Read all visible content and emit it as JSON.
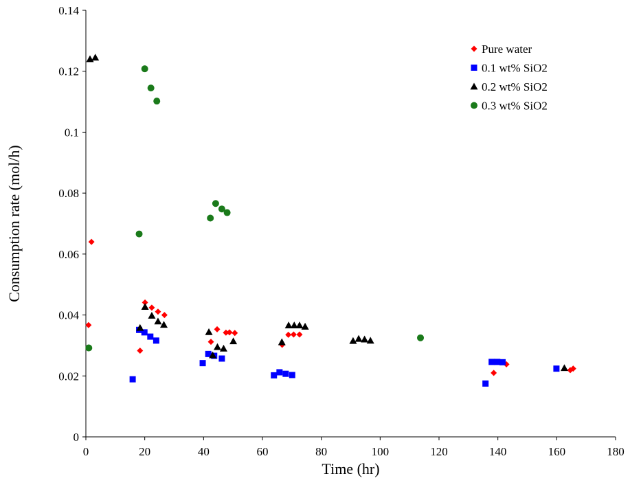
{
  "chart_data": {
    "type": "scatter",
    "xlabel": "Time (hr)",
    "ylabel": "Consumption rate (mol/h)",
    "xlim": [
      0,
      180
    ],
    "ylim": [
      0,
      0.14
    ],
    "xticks": [
      "0",
      "20",
      "40",
      "60",
      "80",
      "100",
      "120",
      "140",
      "160",
      "180"
    ],
    "yticks": [
      "0",
      "0.02",
      "0.04",
      "0.06",
      "0.08",
      "0.1",
      "0.12",
      "0.14"
    ],
    "grid": false,
    "legend_position": "top-right",
    "series": [
      {
        "name": "Pure water",
        "marker": "diamond",
        "color": "#ff0000",
        "points": [
          [
            0.9,
            0.0367
          ],
          [
            1.9,
            0.064
          ],
          [
            18.4,
            0.0283
          ],
          [
            20.1,
            0.0441
          ],
          [
            22.4,
            0.0424
          ],
          [
            24.5,
            0.0411
          ],
          [
            26.7,
            0.04
          ],
          [
            42.5,
            0.0312
          ],
          [
            44.6,
            0.0353
          ],
          [
            47.6,
            0.0342
          ],
          [
            48.8,
            0.0343
          ],
          [
            50.6,
            0.0341
          ],
          [
            66.7,
            0.0302
          ],
          [
            68.8,
            0.0335
          ],
          [
            70.6,
            0.0336
          ],
          [
            72.6,
            0.0336
          ],
          [
            138.6,
            0.021
          ],
          [
            142.9,
            0.0238
          ],
          [
            164.6,
            0.0219
          ],
          [
            165.6,
            0.0224
          ]
        ]
      },
      {
        "name": "0.1 wt% SiO2",
        "marker": "square",
        "color": "#0000ff",
        "points": [
          [
            15.9,
            0.0189
          ],
          [
            18.1,
            0.0351
          ],
          [
            19.9,
            0.0343
          ],
          [
            21.9,
            0.0329
          ],
          [
            23.9,
            0.0316
          ],
          [
            39.7,
            0.0242
          ],
          [
            41.6,
            0.0272
          ],
          [
            43.6,
            0.0266
          ],
          [
            46.2,
            0.0257
          ],
          [
            63.9,
            0.0202
          ],
          [
            65.8,
            0.0212
          ],
          [
            67.9,
            0.0207
          ],
          [
            70.1,
            0.0203
          ],
          [
            135.8,
            0.0175
          ],
          [
            137.9,
            0.0246
          ],
          [
            139.8,
            0.0246
          ],
          [
            141.6,
            0.0245
          ],
          [
            159.9,
            0.0224
          ]
        ]
      },
      {
        "name": "0.2 wt% SiO2",
        "marker": "triangle",
        "color": "#000000",
        "points": [
          [
            1.4,
            0.124
          ],
          [
            3.2,
            0.1245
          ],
          [
            18.4,
            0.0358
          ],
          [
            20.1,
            0.0427
          ],
          [
            22.4,
            0.0398
          ],
          [
            24.5,
            0.0379
          ],
          [
            26.5,
            0.0368
          ],
          [
            41.8,
            0.0344
          ],
          [
            43.1,
            0.0268
          ],
          [
            44.7,
            0.0295
          ],
          [
            46.8,
            0.029
          ],
          [
            50.1,
            0.0314
          ],
          [
            66.6,
            0.0311
          ],
          [
            68.9,
            0.0366
          ],
          [
            70.8,
            0.0366
          ],
          [
            72.6,
            0.0366
          ],
          [
            74.5,
            0.0362
          ],
          [
            90.8,
            0.0315
          ],
          [
            92.7,
            0.0322
          ],
          [
            94.7,
            0.032
          ],
          [
            96.7,
            0.0316
          ],
          [
            162.6,
            0.0226
          ]
        ]
      },
      {
        "name": "0.3 wt% SiO2",
        "marker": "circle",
        "color": "#1a7a1a",
        "points": [
          [
            1.0,
            0.0292
          ],
          [
            18.1,
            0.0666
          ],
          [
            20.0,
            0.1208
          ],
          [
            22.1,
            0.1145
          ],
          [
            24.1,
            0.1102
          ],
          [
            42.3,
            0.0718
          ],
          [
            44.1,
            0.0766
          ],
          [
            46.2,
            0.0748
          ],
          [
            48.0,
            0.0736
          ],
          [
            113.7,
            0.0325
          ]
        ]
      }
    ]
  }
}
